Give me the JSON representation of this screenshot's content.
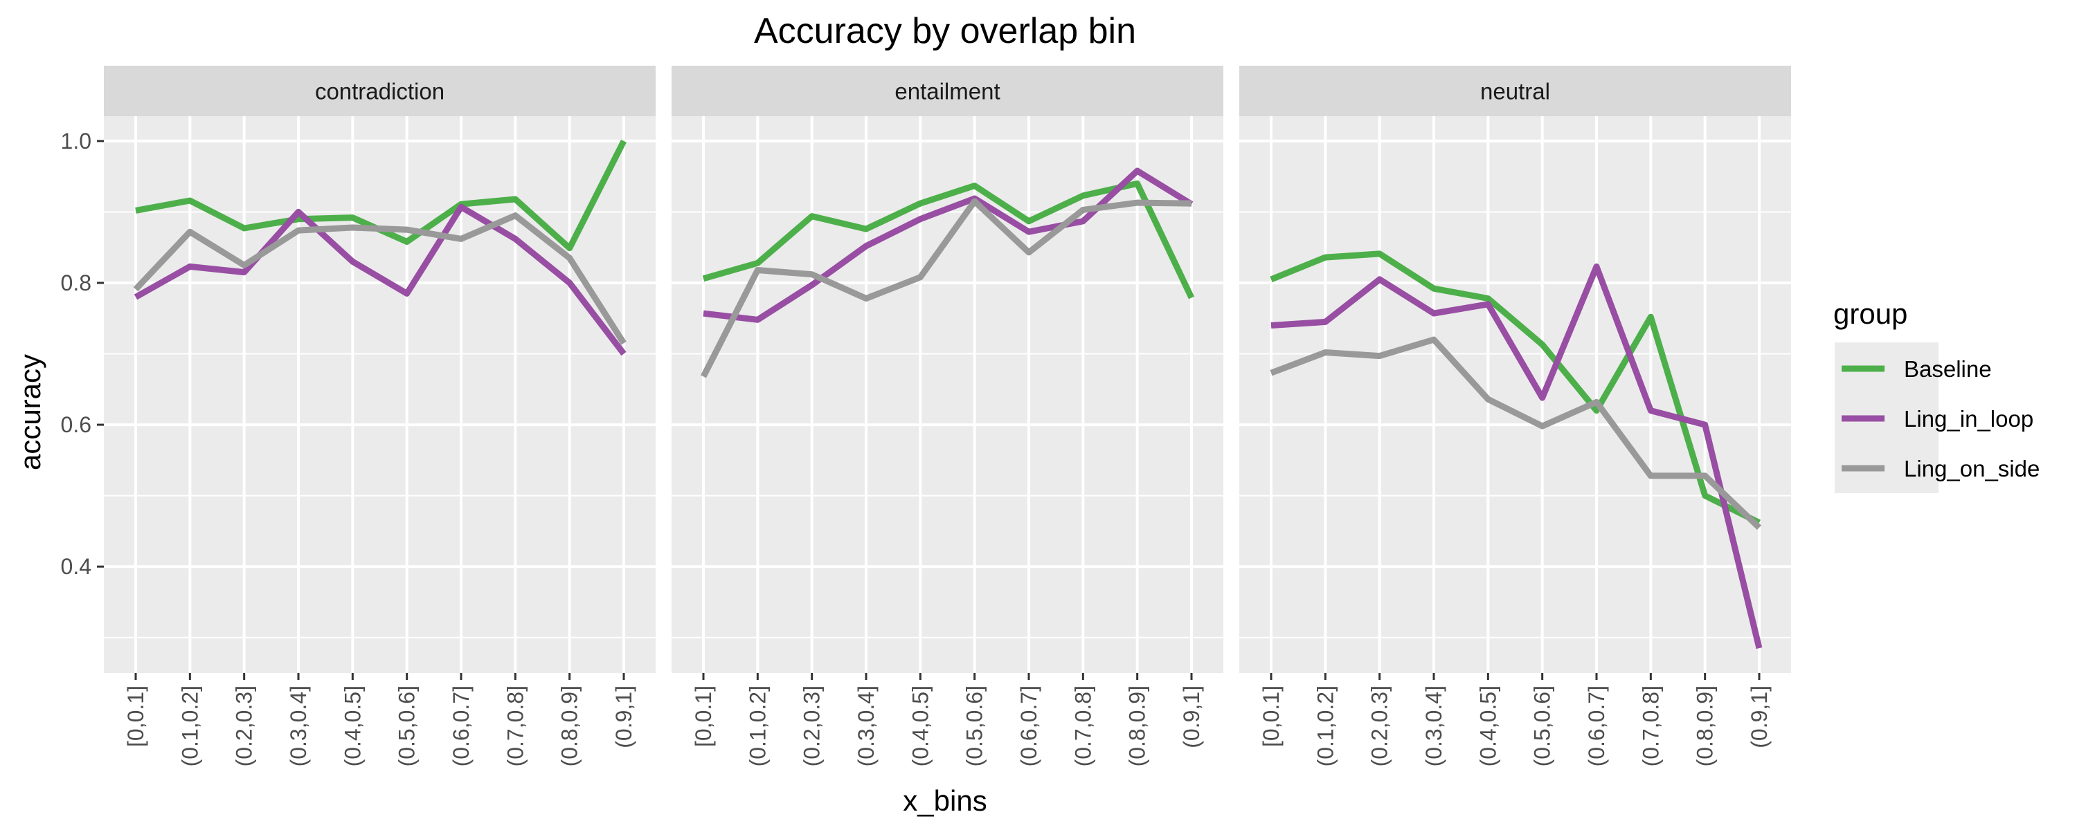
{
  "chart_data": {
    "type": "line",
    "title": "Accuracy by overlap bin",
    "xlabel": "x_bins",
    "ylabel": "accuracy",
    "ylim": [
      0.25,
      1.035
    ],
    "yticks": [
      0.4,
      0.6,
      0.8,
      1.0
    ],
    "ytick_labels": [
      "0.4",
      "0.6",
      "0.8",
      "1.0"
    ],
    "grid": true,
    "legend": {
      "title": "group",
      "position": "right"
    },
    "categories": [
      "[0,0.1]",
      "(0.1,0.2]",
      "(0.2,0.3]",
      "(0.3,0.4]",
      "(0.4,0.5]",
      "(0.5,0.6]",
      "(0.6,0.7]",
      "(0.7,0.8]",
      "(0.8,0.9]",
      "(0.9,1]"
    ],
    "colors": {
      "Baseline": "#4daf4a",
      "Ling_in_loop": "#984ea3",
      "Ling_on_side": "#999999"
    },
    "facets": [
      {
        "name": "contradiction",
        "series": [
          {
            "name": "Baseline",
            "values": [
              0.902,
              0.916,
              0.877,
              0.89,
              0.892,
              0.858,
              0.911,
              0.918,
              0.849,
              1.0
            ]
          },
          {
            "name": "Ling_in_loop",
            "values": [
              0.78,
              0.823,
              0.815,
              0.9,
              0.83,
              0.785,
              0.907,
              0.862,
              0.8,
              0.7
            ]
          },
          {
            "name": "Ling_on_side",
            "values": [
              0.791,
              0.872,
              0.825,
              0.874,
              0.878,
              0.875,
              0.862,
              0.895,
              0.835,
              0.715
            ]
          }
        ]
      },
      {
        "name": "entailment",
        "series": [
          {
            "name": "Baseline",
            "values": [
              0.806,
              0.828,
              0.894,
              0.876,
              0.912,
              0.937,
              0.887,
              0.923,
              0.94,
              0.779
            ]
          },
          {
            "name": "Ling_in_loop",
            "values": [
              0.757,
              0.748,
              0.797,
              0.852,
              0.89,
              0.919,
              0.872,
              0.887,
              0.958,
              0.911
            ]
          },
          {
            "name": "Ling_on_side",
            "values": [
              0.668,
              0.818,
              0.812,
              0.778,
              0.808,
              0.915,
              0.843,
              0.903,
              0.913,
              0.912
            ]
          }
        ]
      },
      {
        "name": "neutral",
        "series": [
          {
            "name": "Baseline",
            "values": [
              0.805,
              0.836,
              0.841,
              0.792,
              0.778,
              0.713,
              0.62,
              0.752,
              0.5,
              0.462
            ]
          },
          {
            "name": "Ling_in_loop",
            "values": [
              0.74,
              0.745,
              0.805,
              0.757,
              0.77,
              0.638,
              0.823,
              0.62,
              0.6,
              0.285
            ]
          },
          {
            "name": "Ling_on_side",
            "values": [
              0.673,
              0.702,
              0.697,
              0.72,
              0.636,
              0.598,
              0.632,
              0.528,
              0.528,
              0.455
            ]
          }
        ]
      }
    ]
  }
}
